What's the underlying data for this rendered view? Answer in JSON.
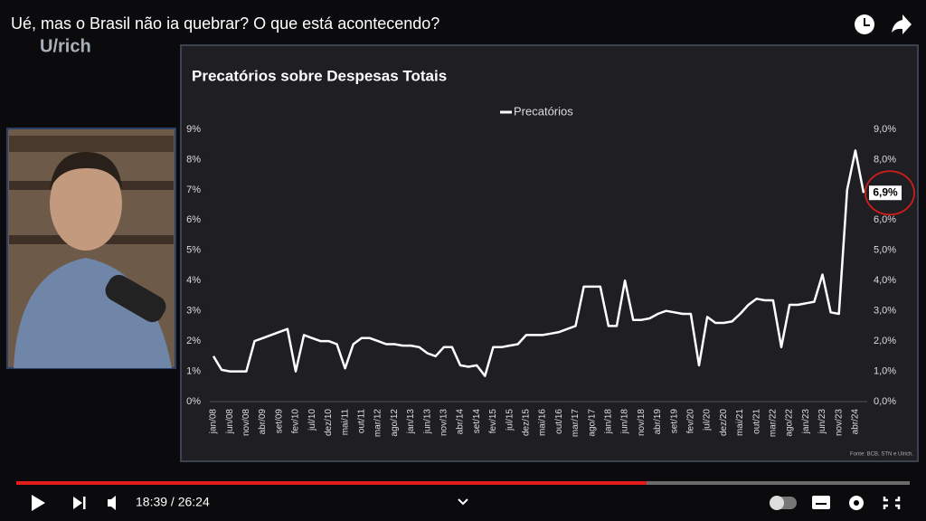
{
  "video": {
    "title": "Ué, mas o Brasil não ia quebrar? O que está acontecendo?",
    "channel_logo": "U/rich",
    "time": "18:39 / 26:24"
  },
  "chart": {
    "type": "line",
    "title": "Precatórios sobre Despesas Totais",
    "categories": [
      "jan/08",
      null,
      "jun/08",
      null,
      "nov/08",
      null,
      "abr/09",
      null,
      "set/09",
      null,
      "fev/10",
      null,
      "jul/10",
      null,
      "dez/10",
      null,
      "mai/11",
      null,
      "out/11",
      null,
      "mar/12",
      null,
      "ago/12",
      null,
      "jan/13",
      null,
      "jun/13",
      null,
      "nov/13",
      null,
      "abr/14",
      null,
      "set/14",
      null,
      "fev/15",
      null,
      "jul/15",
      null,
      "dez/15",
      null,
      "mai/16",
      null,
      "out/16",
      null,
      "mar/17",
      null,
      "ago/17",
      null,
      "jan/18",
      null,
      "jun/18",
      null,
      "nov/18",
      null,
      "abr/19",
      null,
      "set/19",
      null,
      "fev/20",
      null,
      "jul/20",
      null,
      "dez/20",
      null,
      "mai/21",
      null,
      "out/21",
      null,
      "mar/22",
      null,
      "ago/22",
      null,
      "jan/23",
      null,
      "jun/23",
      null,
      "nov/23",
      null,
      "abr/24",
      null
    ],
    "series": [
      {
        "name": "Precatórios",
        "color": "#ffffff",
        "values": [
          1.5,
          1.05,
          1.0,
          1.0,
          1.0,
          2.0,
          2.1,
          2.2,
          2.3,
          2.4,
          1.0,
          2.2,
          2.1,
          2.0,
          2.0,
          1.9,
          1.1,
          1.9,
          2.1,
          2.1,
          2.0,
          1.9,
          1.9,
          1.85,
          1.85,
          1.8,
          1.6,
          1.5,
          1.8,
          1.8,
          1.2,
          1.15,
          1.2,
          0.85,
          1.8,
          1.8,
          1.85,
          1.9,
          2.2,
          2.2,
          2.2,
          2.25,
          2.3,
          2.4,
          2.5,
          3.8,
          3.8,
          3.8,
          2.5,
          2.5,
          4.0,
          2.7,
          2.7,
          2.75,
          2.9,
          3.0,
          2.95,
          2.9,
          2.9,
          1.2,
          2.8,
          2.6,
          2.6,
          2.65,
          2.9,
          3.2,
          3.4,
          3.35,
          3.35,
          1.8,
          3.2,
          3.2,
          3.25,
          3.3,
          4.2,
          2.95,
          2.9,
          7.0,
          8.3,
          6.9
        ]
      }
    ],
    "ylim": [
      0,
      9
    ],
    "yticks": [
      {
        "value": 0,
        "label": "0%"
      },
      {
        "value": 1,
        "label": "1%"
      },
      {
        "value": 2,
        "label": "2%"
      },
      {
        "value": 3,
        "label": "3%"
      },
      {
        "value": 4,
        "label": "4%"
      },
      {
        "value": 5,
        "label": "5%"
      },
      {
        "value": 6,
        "label": "6%"
      },
      {
        "value": 7,
        "label": "7%"
      },
      {
        "value": 8,
        "label": "8%"
      },
      {
        "value": 9,
        "label": "9%"
      }
    ],
    "y2lim": [
      0,
      9
    ],
    "y2ticks": [
      {
        "value": 0,
        "label": "0,0%"
      },
      {
        "value": 1,
        "label": "1,0%"
      },
      {
        "value": 2,
        "label": "2,0%"
      },
      {
        "value": 3,
        "label": "3,0%"
      },
      {
        "value": 4,
        "label": "4,0%"
      },
      {
        "value": 5,
        "label": "5,0%"
      },
      {
        "value": 6,
        "label": "6,0%"
      },
      {
        "value": 7,
        "label": "7,0%"
      },
      {
        "value": 8,
        "label": "8,0%"
      },
      {
        "value": 9,
        "label": "9,0%"
      }
    ],
    "annotation": {
      "value": 6.9,
      "label": "6,9%"
    },
    "source": "Fonte: BCB, STN e Ulrich."
  }
}
